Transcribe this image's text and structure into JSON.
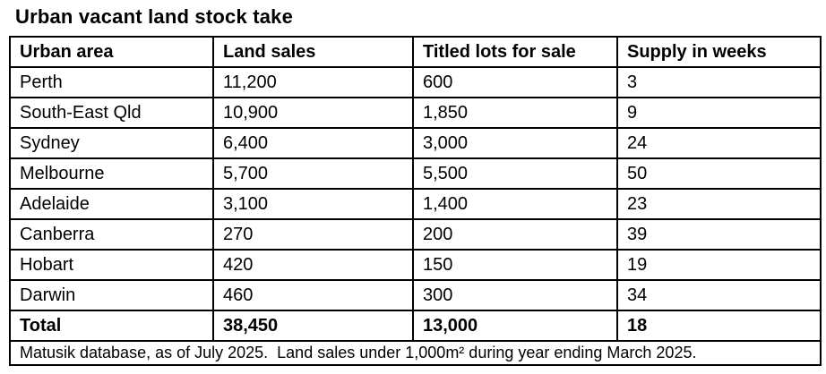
{
  "chart_data": {
    "type": "table",
    "title": "Urban vacant land stock take",
    "columns": [
      "Urban area",
      "Land sales",
      "Titled lots for sale",
      "Supply in weeks"
    ],
    "rows": [
      [
        "Perth",
        "11,200",
        "600",
        "3"
      ],
      [
        "South-East Qld",
        "10,900",
        "1,850",
        "9"
      ],
      [
        "Sydney",
        "6,400",
        "3,000",
        "24"
      ],
      [
        "Melbourne",
        "5,700",
        "5,500",
        "50"
      ],
      [
        "Adelaide",
        "3,100",
        "1,400",
        "23"
      ],
      [
        "Canberra",
        "270",
        "200",
        "39"
      ],
      [
        "Hobart",
        "420",
        "150",
        "19"
      ],
      [
        "Darwin",
        "460",
        "300",
        "34"
      ]
    ],
    "total_row": [
      "Total",
      "38,450",
      "13,000",
      "18"
    ],
    "footnote": "Matusik database, as of July 2025.  Land sales under 1,000m² during year ending March 2025.",
    "layout": {
      "grid": "on",
      "border_color": "#000000",
      "background_color": "#ffffff",
      "text_color": "#000000"
    }
  }
}
